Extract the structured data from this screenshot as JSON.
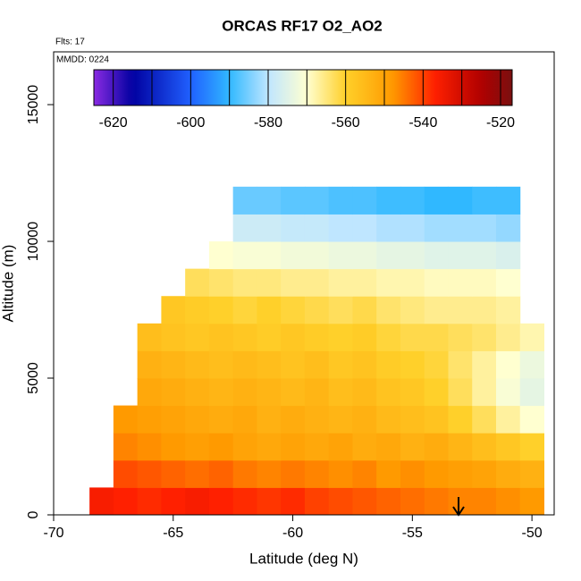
{
  "chart_data": {
    "type": "heatmap",
    "title": "ORCAS RF17 O2_AO2",
    "annotations": [
      "Flts: 17",
      "MMDD: 0224"
    ],
    "x_label": "Latitude (deg N)",
    "y_label": "Altitude (m)",
    "xlim": [
      -70,
      -49.07
    ],
    "ylim": [
      0,
      16930
    ],
    "xticks": [
      -70,
      -65,
      -60,
      -55,
      -50
    ],
    "yticks": [
      0,
      5000,
      10000,
      15000
    ],
    "x": [
      -68,
      -67,
      -66,
      -65,
      -64,
      -63,
      -62,
      -61,
      -60,
      -59,
      -58,
      -57,
      -56,
      -55,
      -54,
      -53,
      -52,
      -51,
      -50
    ],
    "y": [
      500,
      1500,
      2500,
      3500,
      4500,
      5500,
      6500,
      7500,
      8500,
      9500,
      10500,
      11500
    ],
    "z": [
      [
        -536,
        -537,
        -538,
        -537,
        -536,
        -537,
        -538,
        -539,
        -538,
        -540,
        -541,
        -542,
        -543,
        -544,
        -545,
        -546,
        -546,
        -547,
        -548
      ],
      [
        null,
        -541,
        -542,
        -543,
        -544,
        -543,
        -545,
        -546,
        -545,
        -546,
        -547,
        -546,
        -548,
        -547,
        -548,
        -549,
        -550,
        -552,
        -553
      ],
      [
        null,
        -546,
        -547,
        -548,
        -549,
        -548,
        -550,
        -551,
        -550,
        -551,
        -550,
        -552,
        -551,
        -553,
        -552,
        -554,
        -556,
        -558,
        -560
      ],
      [
        null,
        -548,
        -549,
        -550,
        -551,
        -552,
        -551,
        -553,
        -552,
        -553,
        -554,
        -553,
        -555,
        -556,
        -557,
        -560,
        -563,
        -567,
        -570
      ],
      [
        null,
        null,
        -551,
        -552,
        -553,
        -554,
        -553,
        -554,
        -555,
        -554,
        -556,
        -555,
        -557,
        -558,
        -560,
        -563,
        -567,
        -571,
        -574
      ],
      [
        null,
        null,
        -553,
        -554,
        -555,
        -556,
        -555,
        -556,
        -557,
        -556,
        -558,
        -557,
        -559,
        -560,
        -561,
        -564,
        -567,
        -570,
        -573
      ],
      [
        null,
        null,
        -556,
        -557,
        -558,
        -557,
        -558,
        -559,
        -558,
        -559,
        -560,
        -559,
        -561,
        -562,
        -562,
        -563,
        -564,
        -566,
        -568
      ],
      [
        null,
        null,
        null,
        -558,
        -559,
        -560,
        -561,
        -560,
        -561,
        -562,
        -563,
        -562,
        -564,
        -565,
        -566,
        -566,
        -566,
        -567,
        null
      ],
      [
        null,
        null,
        null,
        null,
        -563,
        -564,
        -565,
        -565,
        -566,
        -566,
        -567,
        -567,
        -568,
        -568,
        -569,
        -569,
        -569,
        -570,
        null
      ],
      [
        null,
        null,
        null,
        null,
        null,
        -570,
        -571,
        -571,
        -572,
        -572,
        -573,
        -573,
        -574,
        -574,
        -575,
        -575,
        -575,
        -576,
        null
      ],
      [
        null,
        null,
        null,
        null,
        null,
        null,
        -578,
        -578,
        -579,
        -579,
        -580,
        -580,
        -581,
        -581,
        -582,
        -582,
        -582,
        -583,
        null
      ],
      [
        null,
        null,
        null,
        null,
        null,
        null,
        -586,
        -586,
        -587,
        -587,
        -588,
        -588,
        -589,
        -589,
        -590,
        -590,
        -589,
        -589,
        null
      ]
    ],
    "clim": [
      -625,
      -517
    ],
    "colorbar_ticks": [
      -620,
      -600,
      -580,
      -560,
      -540,
      -520
    ],
    "colorbar_breaks": [
      -620,
      -610,
      -600,
      -590,
      -580,
      -570,
      -560,
      -550,
      -540,
      -530,
      -520
    ],
    "colorscale": [
      {
        "value": -625,
        "color": "#8a2be2"
      },
      {
        "value": -615,
        "color": "#0000a0"
      },
      {
        "value": -600,
        "color": "#2060ff"
      },
      {
        "value": -590,
        "color": "#30b8ff"
      },
      {
        "value": -580,
        "color": "#bfe6ff"
      },
      {
        "value": -570,
        "color": "#ffffd0"
      },
      {
        "value": -560,
        "color": "#ffd02a"
      },
      {
        "value": -548,
        "color": "#ff9a00"
      },
      {
        "value": -537,
        "color": "#ff2000"
      },
      {
        "value": -525,
        "color": "#b00000"
      },
      {
        "value": -517,
        "color": "#7a1010"
      }
    ]
  }
}
